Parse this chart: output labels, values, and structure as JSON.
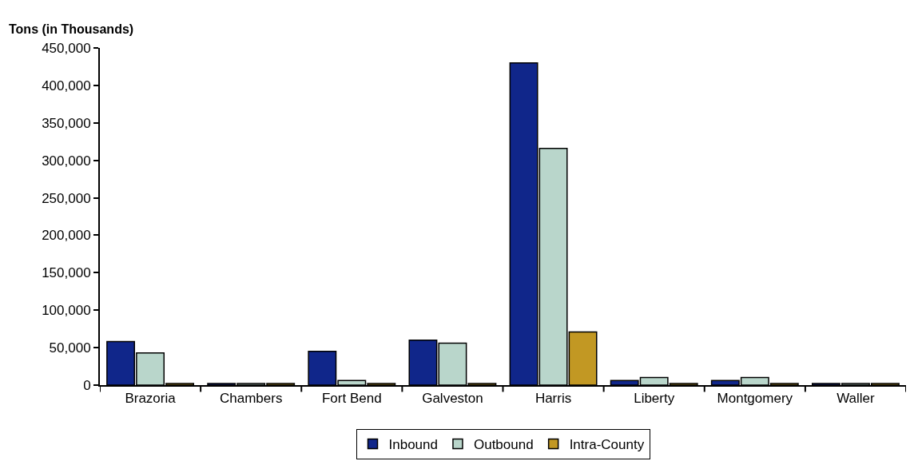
{
  "chart_data": {
    "type": "bar",
    "ylabel": "Tons (in Thousands)",
    "categories": [
      "Brazoria",
      "Chambers",
      "Fort Bend",
      "Galveston",
      "Harris",
      "Liberty",
      "Montgomery",
      "Waller"
    ],
    "series": [
      {
        "name": "Inbound",
        "color": "#10268a",
        "values": [
          58000,
          2000,
          45000,
          60000,
          430000,
          6000,
          6000,
          2000
        ]
      },
      {
        "name": "Outbound",
        "color": "#b9d6cb",
        "values": [
          43000,
          2000,
          6000,
          56000,
          316000,
          10000,
          10000,
          2000
        ]
      },
      {
        "name": "Intra-County",
        "color": "#c29823",
        "values": [
          2000,
          2000,
          2000,
          2000,
          71000,
          2000,
          2000,
          2000
        ]
      }
    ],
    "ylim": [
      0,
      450000
    ],
    "yticks": [
      {
        "value": 0,
        "label": "0"
      },
      {
        "value": 50000,
        "label": "50,000"
      },
      {
        "value": 100000,
        "label": "100,000"
      },
      {
        "value": 150000,
        "label": "150,000"
      },
      {
        "value": 200000,
        "label": "200,000"
      },
      {
        "value": 250000,
        "label": "250,000"
      },
      {
        "value": 300000,
        "label": "300,000"
      },
      {
        "value": 350000,
        "label": "350,000"
      },
      {
        "value": 400000,
        "label": "400,000"
      },
      {
        "value": 450000,
        "label": "450,000"
      }
    ],
    "legend": "bottom"
  }
}
